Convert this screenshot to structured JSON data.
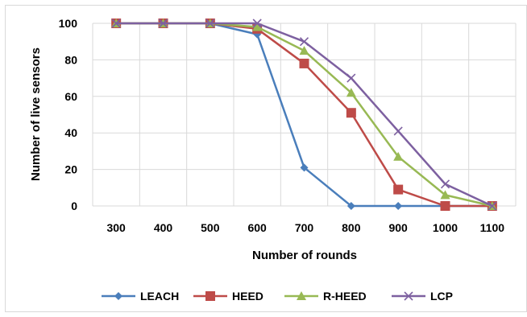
{
  "chart_data": {
    "type": "line",
    "xlabel": "Number of rounds",
    "ylabel": "Number of live sensors",
    "x": [
      "300",
      "400",
      "500",
      "600",
      "700",
      "800",
      "900",
      "1000",
      "1100"
    ],
    "ylim": [
      0,
      100
    ],
    "yticks": [
      "0",
      "20",
      "40",
      "60",
      "80",
      "100"
    ],
    "grid": "on",
    "legend_position": "bottom",
    "series": [
      {
        "name": "LEACH",
        "marker": "diamond",
        "color": "#4a7ebb",
        "values": [
          100,
          100,
          100,
          94,
          21,
          0,
          0,
          0,
          0
        ]
      },
      {
        "name": "HEED",
        "marker": "square",
        "color": "#be4b48",
        "values": [
          100,
          100,
          100,
          97,
          78,
          51,
          9,
          0,
          0
        ]
      },
      {
        "name": "R-HEED",
        "marker": "triangle",
        "color": "#98b954",
        "values": [
          100,
          100,
          100,
          98,
          85,
          62,
          27,
          6,
          0
        ]
      },
      {
        "name": "LCP",
        "marker": "x",
        "color": "#7d60a0",
        "values": [
          100,
          100,
          100,
          100,
          90,
          70,
          41,
          12,
          0
        ]
      }
    ]
  }
}
